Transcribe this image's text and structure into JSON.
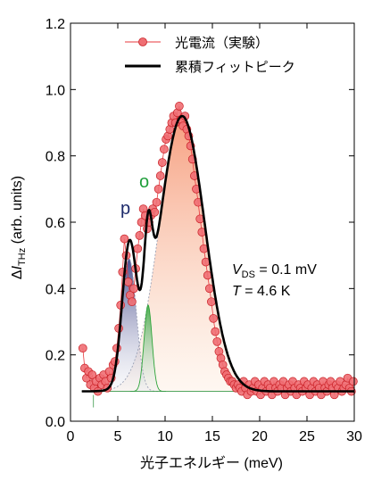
{
  "chart_data": {
    "type": "line",
    "xlabel": "光子エネルギー (meV)",
    "ylabel_parts": [
      "Δ",
      "I",
      "THz",
      " (arb. units)"
    ],
    "xlim": [
      0,
      30
    ],
    "ylim": [
      0,
      1.2
    ],
    "xticks": [
      0,
      5,
      10,
      15,
      20,
      25,
      30
    ],
    "yticks": [
      0.0,
      0.2,
      0.4,
      0.6,
      0.8,
      1.0,
      1.2
    ],
    "legend_position": "top-center",
    "legend": [
      {
        "key": "measured",
        "label": "光電流（実験）",
        "color": "#e8383d",
        "marker": "circle"
      },
      {
        "key": "fit",
        "label": "累積フィットピーク",
        "color": "#000000",
        "marker": "line"
      }
    ],
    "annotations": {
      "vds_label": "V",
      "vds_sub": "DS",
      "vds_value": " = 0.1 mV",
      "temp_label": "T",
      "temp_value": " = 4.6 K",
      "peak_p": "p",
      "peak_o": "o"
    },
    "baseline": 0.09,
    "components": [
      {
        "name": "p",
        "center": 6.2,
        "amplitude": 0.4,
        "sigma": 0.75,
        "color": "#2a2f7a"
      },
      {
        "name": "o",
        "center": 8.2,
        "amplitude": 0.26,
        "sigma": 0.42,
        "color": "#2ea43a"
      },
      {
        "name": "main",
        "center": 11.8,
        "amplitude": 0.83,
        "sigma": 2.4,
        "color": "#f26a3a"
      }
    ],
    "fit_x_range": [
      1.2,
      30
    ],
    "series": [
      {
        "name": "光電流（実験）",
        "x": [
          1.3,
          1.5,
          1.7,
          1.9,
          2.1,
          2.3,
          2.5,
          2.7,
          2.9,
          3.1,
          3.3,
          3.5,
          3.7,
          3.9,
          4.1,
          4.3,
          4.5,
          4.7,
          4.9,
          5.1,
          5.3,
          5.5,
          5.7,
          5.9,
          6.1,
          6.3,
          6.5,
          6.7,
          6.9,
          7.1,
          7.3,
          7.5,
          7.7,
          7.9,
          8.1,
          8.3,
          8.5,
          8.7,
          8.9,
          9.1,
          9.3,
          9.5,
          9.7,
          9.9,
          10.1,
          10.3,
          10.5,
          10.7,
          10.9,
          11.1,
          11.3,
          11.5,
          11.7,
          11.9,
          12.1,
          12.3,
          12.5,
          12.7,
          12.9,
          13.1,
          13.3,
          13.5,
          13.7,
          13.9,
          14.1,
          14.3,
          14.5,
          14.7,
          14.9,
          15.1,
          15.3,
          15.5,
          15.7,
          15.9,
          16.1,
          16.3,
          16.5,
          16.7,
          16.9,
          17.1,
          17.3,
          17.5,
          17.7,
          17.9,
          18.1,
          18.3,
          18.5,
          18.7,
          18.9,
          19.1,
          19.3,
          19.5,
          19.7,
          19.9,
          20.1,
          20.3,
          20.5,
          20.7,
          20.9,
          21.1,
          21.3,
          21.5,
          21.7,
          21.9,
          22.1,
          22.3,
          22.5,
          22.7,
          22.9,
          23.1,
          23.3,
          23.5,
          23.7,
          23.9,
          24.1,
          24.3,
          24.5,
          24.7,
          24.9,
          25.1,
          25.3,
          25.5,
          25.7,
          25.9,
          26.1,
          26.3,
          26.5,
          26.7,
          26.9,
          27.1,
          27.3,
          27.5,
          27.7,
          27.9,
          28.1,
          28.3,
          28.5,
          28.7,
          28.9,
          29.1,
          29.3,
          29.5,
          29.7,
          29.9
        ],
        "y": [
          0.22,
          0.16,
          0.13,
          0.15,
          0.11,
          0.14,
          0.1,
          0.12,
          0.09,
          0.13,
          0.11,
          0.14,
          0.12,
          0.1,
          0.15,
          0.13,
          0.17,
          0.18,
          0.22,
          0.28,
          0.35,
          0.45,
          0.55,
          0.5,
          0.42,
          0.38,
          0.36,
          0.4,
          0.46,
          0.52,
          0.56,
          0.6,
          0.64,
          0.62,
          0.58,
          0.6,
          0.62,
          0.64,
          0.63,
          0.66,
          0.7,
          0.74,
          0.78,
          0.82,
          0.85,
          0.86,
          0.88,
          0.9,
          0.92,
          0.9,
          0.93,
          0.95,
          0.91,
          0.89,
          0.92,
          0.88,
          0.86,
          0.83,
          0.79,
          0.74,
          0.7,
          0.66,
          0.61,
          0.57,
          0.52,
          0.48,
          0.44,
          0.4,
          0.36,
          0.31,
          0.27,
          0.24,
          0.21,
          0.19,
          0.17,
          0.15,
          0.14,
          0.13,
          0.12,
          0.12,
          0.11,
          0.1,
          0.11,
          0.1,
          0.09,
          0.12,
          0.1,
          0.08,
          0.11,
          0.09,
          0.1,
          0.12,
          0.09,
          0.11,
          0.08,
          0.1,
          0.12,
          0.09,
          0.11,
          0.1,
          0.08,
          0.12,
          0.1,
          0.09,
          0.11,
          0.1,
          0.12,
          0.08,
          0.1,
          0.11,
          0.09,
          0.12,
          0.1,
          0.08,
          0.11,
          0.1,
          0.09,
          0.12,
          0.1,
          0.11,
          0.08,
          0.1,
          0.12,
          0.09,
          0.11,
          0.1,
          0.08,
          0.12,
          0.1,
          0.09,
          0.11,
          0.12,
          0.1,
          0.08,
          0.11,
          0.1,
          0.12,
          0.09,
          0.1,
          0.11,
          0.13,
          0.1,
          0.09,
          0.12
        ]
      }
    ]
  }
}
